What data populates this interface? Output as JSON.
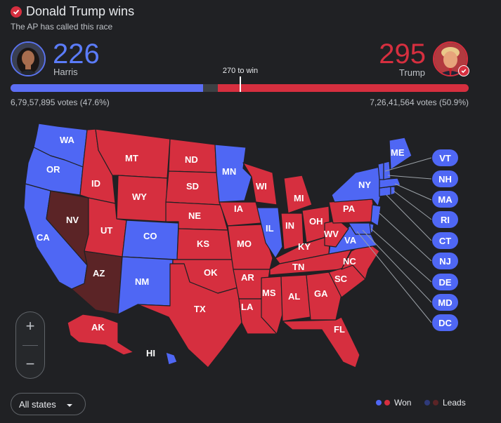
{
  "header": {
    "winner_title": "Donald Trump wins",
    "subtitle": "The AP has called this race"
  },
  "candidates": {
    "harris": {
      "name": "Harris",
      "electoral_votes": "226",
      "popular_votes": "6,79,57,895 votes (47.6%)",
      "color": "#5b6ef5"
    },
    "trump": {
      "name": "Trump",
      "electoral_votes": "295",
      "popular_votes": "7,26,41,564 votes (50.9%)",
      "color": "#d62f3f"
    }
  },
  "threshold_label": "270 to win",
  "states_map": {
    "won_dem_color": "#4f67f4",
    "won_rep_color": "#d62f3f",
    "lead_rep_color": "#5b2426",
    "labels": [
      "WA",
      "OR",
      "CA",
      "NV",
      "ID",
      "MT",
      "WY",
      "UT",
      "AZ",
      "CO",
      "NM",
      "ND",
      "SD",
      "NE",
      "KS",
      "OK",
      "TX",
      "MN",
      "IA",
      "MO",
      "AR",
      "LA",
      "WI",
      "IL",
      "MI",
      "IN",
      "OH",
      "KY",
      "TN",
      "MS",
      "AL",
      "GA",
      "FL",
      "SC",
      "NC",
      "VA",
      "WV",
      "PA",
      "NY",
      "ME",
      "AK",
      "HI"
    ],
    "small_states": [
      "VT",
      "NH",
      "MA",
      "RI",
      "CT",
      "NJ",
      "DE",
      "MD",
      "DC"
    ]
  },
  "controls": {
    "zoom_in": "+",
    "zoom_out": "−",
    "filter_label": "All states"
  },
  "legend": {
    "won_label": "Won",
    "leads_label": "Leads"
  }
}
